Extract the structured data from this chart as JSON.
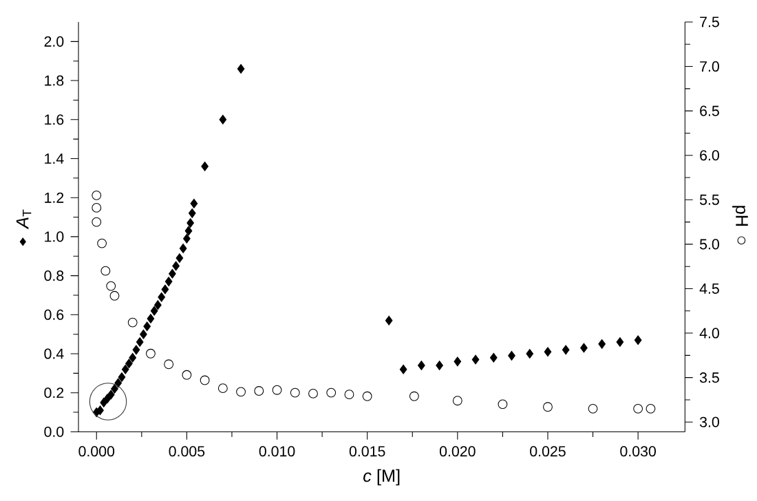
{
  "chart_data": {
    "type": "scatter",
    "xlabel": "*c* [M]",
    "ylabel": "*A*$_{T}$",
    "y2label": "pH",
    "xlim": [
      -0.001,
      0.0326
    ],
    "ylim": [
      0,
      2.1
    ],
    "y2lim": [
      2.89,
      7.5
    ],
    "xticks": [
      {
        "value": 0,
        "label": "0.000"
      },
      {
        "value": 0.005,
        "label": "0.005"
      },
      {
        "value": 0.01,
        "label": "0.010"
      },
      {
        "value": 0.015,
        "label": "0.015"
      },
      {
        "value": 0.02,
        "label": "0.020"
      },
      {
        "value": 0.025,
        "label": "0.025"
      },
      {
        "value": 0.03,
        "label": "0.030"
      }
    ],
    "yticks": [
      {
        "value": 0,
        "label": "0.0"
      },
      {
        "value": 0.2,
        "label": "0.2"
      },
      {
        "value": 0.4,
        "label": "0.4"
      },
      {
        "value": 0.6,
        "label": "0.6"
      },
      {
        "value": 0.8,
        "label": "0.8"
      },
      {
        "value": 1,
        "label": "1.0"
      },
      {
        "value": 1.2,
        "label": "1.2"
      },
      {
        "value": 1.4,
        "label": "1.4"
      },
      {
        "value": 1.6,
        "label": "1.6"
      },
      {
        "value": 1.8,
        "label": "1.8"
      },
      {
        "value": 2,
        "label": "2.0"
      }
    ],
    "y2ticks": [
      {
        "value": 3,
        "label": "3.0"
      },
      3.5,
      {
        "value": 4,
        "label": "4.0"
      },
      4.5,
      {
        "value": 5,
        "label": "5.0"
      },
      5.5,
      {
        "value": 6,
        "label": "6.0"
      },
      6.5,
      {
        "value": 7,
        "label": "7.0"
      },
      7.5
    ],
    "grid": false,
    "series": [
      {
        "color": "#000000",
        "marker": "diamond",
        "x": [
          0,
          0.0002,
          0.0004,
          0.0006,
          0.0008,
          0.001,
          0.0012,
          0.0014,
          0.0016,
          0.0018,
          0.002,
          0.0022,
          0.0024,
          0.0026,
          0.0028,
          0.003,
          0.0032,
          0.0034,
          0.0036,
          0.0038,
          0.004,
          0.0042,
          0.0044,
          0.0046,
          0.0048,
          0.005,
          0.0051,
          0.0052,
          0.0053,
          0.0054,
          0.006,
          0.007,
          0.008,
          0.0162,
          0.017,
          0.018,
          0.019,
          0.02,
          0.021,
          0.022,
          0.023,
          0.024,
          0.025,
          0.026,
          0.027,
          0.028,
          0.029,
          0.03
        ],
        "values": [
          0.1,
          0.11,
          0.15,
          0.17,
          0.19,
          0.22,
          0.25,
          0.28,
          0.32,
          0.35,
          0.38,
          0.42,
          0.46,
          0.5,
          0.54,
          0.58,
          0.62,
          0.65,
          0.69,
          0.73,
          0.77,
          0.81,
          0.85,
          0.89,
          0.94,
          0.99,
          1.03,
          1.07,
          1.12,
          1.17,
          1.36,
          1.6,
          1.86,
          0.57,
          0.32,
          0.34,
          0.34,
          0.36,
          0.37,
          0.38,
          0.39,
          0.4,
          0.41,
          0.42,
          0.43,
          0.45,
          0.46,
          0.47
        ]
      },
      {
        "color": "#000000",
        "marker": "circle",
        "axis": "y2",
        "x": [
          0,
          0,
          0,
          0.0003,
          0.0005,
          0.0008,
          0.001,
          0.002,
          0.003,
          0.004,
          0.005,
          0.006,
          0.007,
          0.008,
          0.009,
          0.01,
          0.011,
          0.012,
          0.013,
          0.014,
          0.015,
          0.0176,
          0.02,
          0.0225,
          0.025,
          0.0275,
          0.03,
          0.0307
        ],
        "values": [
          5.55,
          5.41,
          5.25,
          5.01,
          4.7,
          4.53,
          4.42,
          4.12,
          3.77,
          3.65,
          3.53,
          3.47,
          3.38,
          3.34,
          3.35,
          3.36,
          3.33,
          3.32,
          3.33,
          3.31,
          3.29,
          3.29,
          3.24,
          3.2,
          3.17,
          3.15,
          3.15,
          3.15
        ]
      }
    ]
  }
}
